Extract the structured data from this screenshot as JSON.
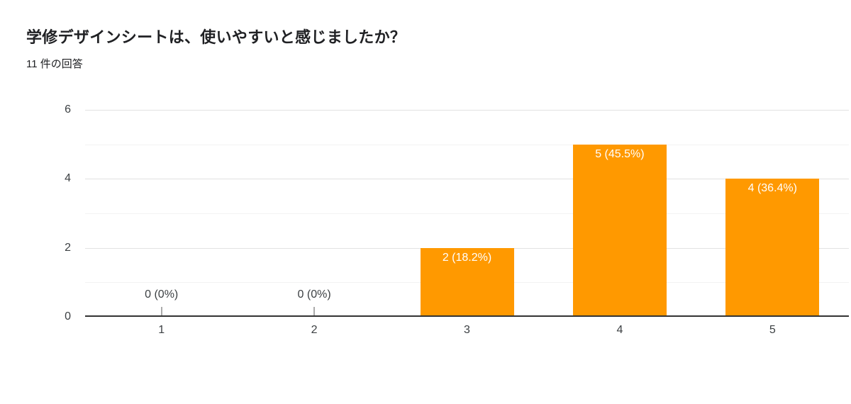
{
  "chart_data": {
    "type": "bar",
    "title": "学修デザインシートは、使いやすいと感じましたか？",
    "subtitle": "11 件の回答",
    "response_count": 11,
    "categories": [
      "1",
      "2",
      "3",
      "4",
      "5"
    ],
    "values": [
      0,
      0,
      2,
      5,
      4
    ],
    "bar_labels": [
      "0 (0%)",
      "0 (0%)",
      "2 (18.2%)",
      "5 (45.5%)",
      "4 (36.4%)"
    ],
    "percentages": [
      0,
      0,
      18.2,
      45.5,
      36.4
    ],
    "xlabel": "",
    "ylabel": "",
    "ylim": [
      0,
      6
    ],
    "yticks": [
      0,
      2,
      4,
      6
    ],
    "y_minor_gridlines": [
      1,
      3,
      5
    ],
    "grid": true,
    "legend": "none",
    "bar_color": "#ff9900",
    "bar_label_color": "#ffffff",
    "axis_text_color": "#3c4043",
    "axis_line_color": "#333333"
  }
}
